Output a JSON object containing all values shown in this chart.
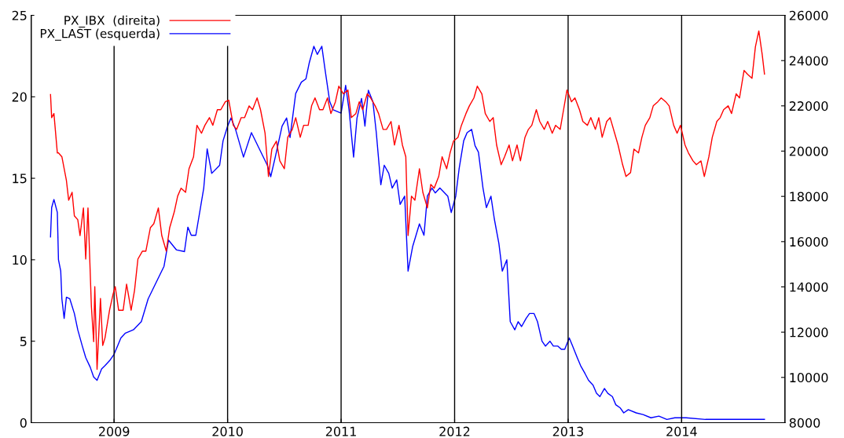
{
  "chart_data": {
    "type": "line",
    "xlim": [
      2008.27,
      2014.91
    ],
    "xticks": [
      2009,
      2010,
      2011,
      2012,
      2013,
      2014
    ],
    "ylim": [
      0,
      25
    ],
    "yticks": [
      0,
      5,
      10,
      15,
      20,
      25
    ],
    "y2lim": [
      8000,
      26000
    ],
    "y2ticks": [
      8000,
      10000,
      12000,
      14000,
      16000,
      18000,
      20000,
      22000,
      24000,
      26000
    ],
    "legend": "top left",
    "grid": false,
    "marker": "none",
    "line_style": "solid",
    "ref_lines": [
      {
        "axis": "x",
        "value": 2009,
        "color": "#000000"
      },
      {
        "axis": "x",
        "value": 2010,
        "color": "#000000"
      },
      {
        "axis": "x",
        "value": 2011,
        "color": "#000000"
      },
      {
        "axis": "x",
        "value": 2012,
        "color": "#000000"
      },
      {
        "axis": "x",
        "value": 2013,
        "color": "#000000"
      },
      {
        "axis": "x",
        "value": 2014,
        "color": "#000000"
      }
    ],
    "series": [
      {
        "name": "PX_IBX  (direita)",
        "color": "#ff0000",
        "axis": "y2",
        "x": [
          2008.44,
          2008.45,
          2008.47,
          2008.5,
          2008.51,
          2008.54,
          2008.58,
          2008.6,
          2008.63,
          2008.65,
          2008.68,
          2008.7,
          2008.73,
          2008.75,
          2008.77,
          2008.8,
          2008.82,
          2008.83,
          2008.85,
          2008.88,
          2008.9,
          2008.92,
          2008.96,
          2008.99,
          2009.01,
          2009.04,
          2009.08,
          2009.11,
          2009.15,
          2009.18,
          2009.21,
          2009.25,
          2009.28,
          2009.32,
          2009.35,
          2009.39,
          2009.42,
          2009.46,
          2009.49,
          2009.53,
          2009.56,
          2009.59,
          2009.63,
          2009.66,
          2009.7,
          2009.73,
          2009.77,
          2009.8,
          2009.84,
          2009.87,
          2009.91,
          2009.94,
          2009.98,
          2010.01,
          2010.05,
          2010.08,
          2010.12,
          2010.15,
          2010.19,
          2010.22,
          2010.26,
          2010.29,
          2010.33,
          2010.36,
          2010.39,
          2010.43,
          2010.46,
          2010.5,
          2010.53,
          2010.57,
          2010.6,
          2010.64,
          2010.67,
          2010.71,
          2010.74,
          2010.77,
          2010.81,
          2010.84,
          2010.88,
          2010.91,
          2010.95,
          2010.98,
          2011.02,
          2011.06,
          2011.09,
          2011.13,
          2011.16,
          2011.19,
          2011.23,
          2011.26,
          2011.3,
          2011.33,
          2011.37,
          2011.4,
          2011.44,
          2011.47,
          2011.51,
          2011.54,
          2011.57,
          2011.59,
          2011.62,
          2011.65,
          2011.69,
          2011.72,
          2011.76,
          2011.79,
          2011.82,
          2011.86,
          2011.89,
          2011.93,
          2011.96,
          2011.99,
          2012.03,
          2012.06,
          2012.1,
          2012.13,
          2012.17,
          2012.2,
          2012.24,
          2012.27,
          2012.31,
          2012.34,
          2012.37,
          2012.41,
          2012.44,
          2012.48,
          2012.51,
          2012.55,
          2012.58,
          2012.62,
          2012.65,
          2012.68,
          2012.72,
          2012.75,
          2012.79,
          2012.82,
          2012.86,
          2012.89,
          2012.93,
          2012.96,
          2012.99,
          2013.03,
          2013.06,
          2013.1,
          2013.13,
          2013.17,
          2013.2,
          2013.24,
          2013.27,
          2013.3,
          2013.34,
          2013.37,
          2013.41,
          2013.44,
          2013.48,
          2013.51,
          2013.55,
          2013.58,
          2013.62,
          2013.65,
          2013.68,
          2013.72,
          2013.75,
          2013.79,
          2013.82,
          2013.86,
          2013.89,
          2013.93,
          2013.96,
          2013.99,
          2014.03,
          2014.06,
          2014.1,
          2014.13,
          2014.17,
          2014.2,
          2014.24,
          2014.27,
          2014.31,
          2014.34,
          2014.37,
          2014.41,
          2014.44,
          2014.48,
          2014.51,
          2014.55,
          2014.58,
          2014.62,
          2014.65,
          2014.68,
          2014.71,
          2014.73
        ],
        "values": [
          22500,
          21480,
          21660,
          19920,
          19920,
          19750,
          18700,
          17830,
          18180,
          17140,
          16970,
          16270,
          17490,
          15230,
          17490,
          13140,
          11580,
          14010,
          10360,
          13490,
          11410,
          11750,
          12970,
          13660,
          14010,
          12970,
          12970,
          14120,
          12970,
          13840,
          15230,
          15580,
          15580,
          16620,
          16790,
          17490,
          16270,
          15580,
          16620,
          17310,
          18010,
          18360,
          18180,
          19220,
          19750,
          21140,
          20790,
          21140,
          21480,
          21140,
          21830,
          21830,
          22180,
          22250,
          21140,
          20960,
          21480,
          21480,
          22000,
          21830,
          22350,
          21830,
          20790,
          18880,
          20090,
          20440,
          19570,
          19220,
          20610,
          20960,
          21480,
          20610,
          21140,
          21140,
          22000,
          22350,
          21830,
          21830,
          22350,
          21660,
          22180,
          22870,
          22530,
          22700,
          21480,
          21660,
          22180,
          21830,
          22530,
          22350,
          22000,
          21660,
          20960,
          20960,
          21310,
          20270,
          21140,
          20270,
          19750,
          16270,
          18010,
          17830,
          19220,
          18180,
          17490,
          18530,
          18360,
          18880,
          19750,
          19220,
          19920,
          20440,
          20610,
          21140,
          21660,
          22000,
          22350,
          22870,
          22530,
          21660,
          21310,
          21480,
          20270,
          19400,
          19750,
          20270,
          19570,
          20270,
          19570,
          20610,
          20960,
          21140,
          21830,
          21310,
          20960,
          21310,
          20790,
          21140,
          20960,
          21830,
          22700,
          22180,
          22350,
          21830,
          21310,
          21140,
          21480,
          20960,
          21480,
          20610,
          21310,
          21480,
          20790,
          20270,
          19400,
          18880,
          19050,
          20090,
          19920,
          20610,
          21140,
          21480,
          22000,
          22180,
          22350,
          22180,
          22000,
          21140,
          20790,
          21140,
          20270,
          19920,
          19570,
          19400,
          19570,
          18880,
          19750,
          20610,
          21310,
          21480,
          21830,
          22000,
          21660,
          22530,
          22350,
          23570,
          23400,
          23220,
          24610,
          25310,
          24260,
          23400
        ]
      },
      {
        "name": "PX_LAST (esquerda)",
        "color": "#0000ff",
        "x": [
          2008.44,
          2008.45,
          2008.47,
          2008.5,
          2008.51,
          2008.53,
          2008.54,
          2008.56,
          2008.58,
          2008.61,
          2008.65,
          2008.68,
          2008.72,
          2008.75,
          2008.79,
          2008.82,
          2008.85,
          2008.89,
          2008.92,
          2008.96,
          2009.0,
          2009.03,
          2009.06,
          2009.1,
          2009.17,
          2009.24,
          2009.3,
          2009.37,
          2009.44,
          2009.48,
          2009.55,
          2009.62,
          2009.65,
          2009.68,
          2009.72,
          2009.79,
          2009.82,
          2009.86,
          2009.93,
          2009.96,
          2010.0,
          2010.03,
          2010.07,
          2010.14,
          2010.21,
          2010.28,
          2010.35,
          2010.38,
          2010.42,
          2010.48,
          2010.52,
          2010.55,
          2010.6,
          2010.65,
          2010.69,
          2010.72,
          2010.76,
          2010.79,
          2010.83,
          2010.86,
          2010.9,
          2010.93,
          2011.0,
          2011.04,
          2011.07,
          2011.11,
          2011.14,
          2011.18,
          2011.21,
          2011.24,
          2011.28,
          2011.31,
          2011.35,
          2011.38,
          2011.42,
          2011.45,
          2011.49,
          2011.52,
          2011.56,
          2011.59,
          2011.63,
          2011.66,
          2011.69,
          2011.73,
          2011.76,
          2011.8,
          2011.83,
          2011.87,
          2011.94,
          2011.97,
          2012.01,
          2012.04,
          2012.08,
          2012.11,
          2012.15,
          2012.18,
          2012.21,
          2012.25,
          2012.28,
          2012.32,
          2012.35,
          2012.39,
          2012.42,
          2012.46,
          2012.49,
          2012.53,
          2012.56,
          2012.59,
          2012.63,
          2012.66,
          2012.7,
          2012.73,
          2012.77,
          2012.8,
          2012.84,
          2012.87,
          2012.91,
          2012.94,
          2012.97,
          2013.01,
          2013.04,
          2013.08,
          2013.11,
          2013.15,
          2013.18,
          2013.22,
          2013.25,
          2013.28,
          2013.32,
          2013.35,
          2013.39,
          2013.42,
          2013.46,
          2013.49,
          2013.53,
          2013.6,
          2013.66,
          2013.73,
          2013.8,
          2013.87,
          2013.94,
          2014.04,
          2014.21,
          2014.39,
          2014.73
        ],
        "values": [
          11.4,
          13.2,
          13.7,
          12.9,
          10.0,
          9.3,
          7.6,
          6.4,
          7.7,
          7.6,
          6.7,
          5.7,
          4.7,
          4.0,
          3.4,
          2.8,
          2.6,
          3.3,
          3.5,
          3.8,
          4.2,
          4.7,
          5.2,
          5.5,
          5.7,
          6.2,
          7.6,
          8.6,
          9.6,
          11.2,
          10.6,
          10.5,
          12.0,
          11.5,
          11.5,
          14.4,
          16.8,
          15.3,
          15.8,
          17.3,
          18.2,
          18.7,
          18.0,
          16.3,
          17.8,
          16.8,
          15.8,
          15.1,
          16.3,
          18.2,
          18.7,
          17.5,
          20.2,
          20.9,
          21.1,
          22.1,
          23.1,
          22.6,
          23.1,
          21.6,
          19.7,
          19.2,
          19.0,
          20.7,
          19.2,
          16.3,
          18.7,
          19.9,
          18.2,
          20.4,
          19.7,
          17.8,
          14.6,
          15.8,
          15.3,
          14.4,
          14.9,
          13.4,
          13.9,
          9.3,
          10.8,
          11.5,
          12.2,
          11.5,
          13.9,
          14.4,
          14.1,
          14.4,
          13.9,
          12.9,
          13.9,
          15.6,
          17.3,
          17.8,
          18.0,
          17.0,
          16.6,
          14.4,
          13.2,
          13.9,
          12.5,
          11.0,
          9.3,
          10.0,
          6.2,
          5.7,
          6.2,
          5.9,
          6.4,
          6.7,
          6.7,
          6.2,
          5.0,
          4.7,
          5.0,
          4.7,
          4.7,
          4.5,
          4.5,
          5.2,
          4.7,
          4.0,
          3.5,
          3.0,
          2.6,
          2.3,
          1.8,
          1.6,
          2.1,
          1.8,
          1.6,
          1.1,
          0.9,
          0.6,
          0.8,
          0.6,
          0.5,
          0.3,
          0.4,
          0.2,
          0.3,
          0.3,
          0.2,
          0.2,
          0.2
        ]
      }
    ]
  }
}
